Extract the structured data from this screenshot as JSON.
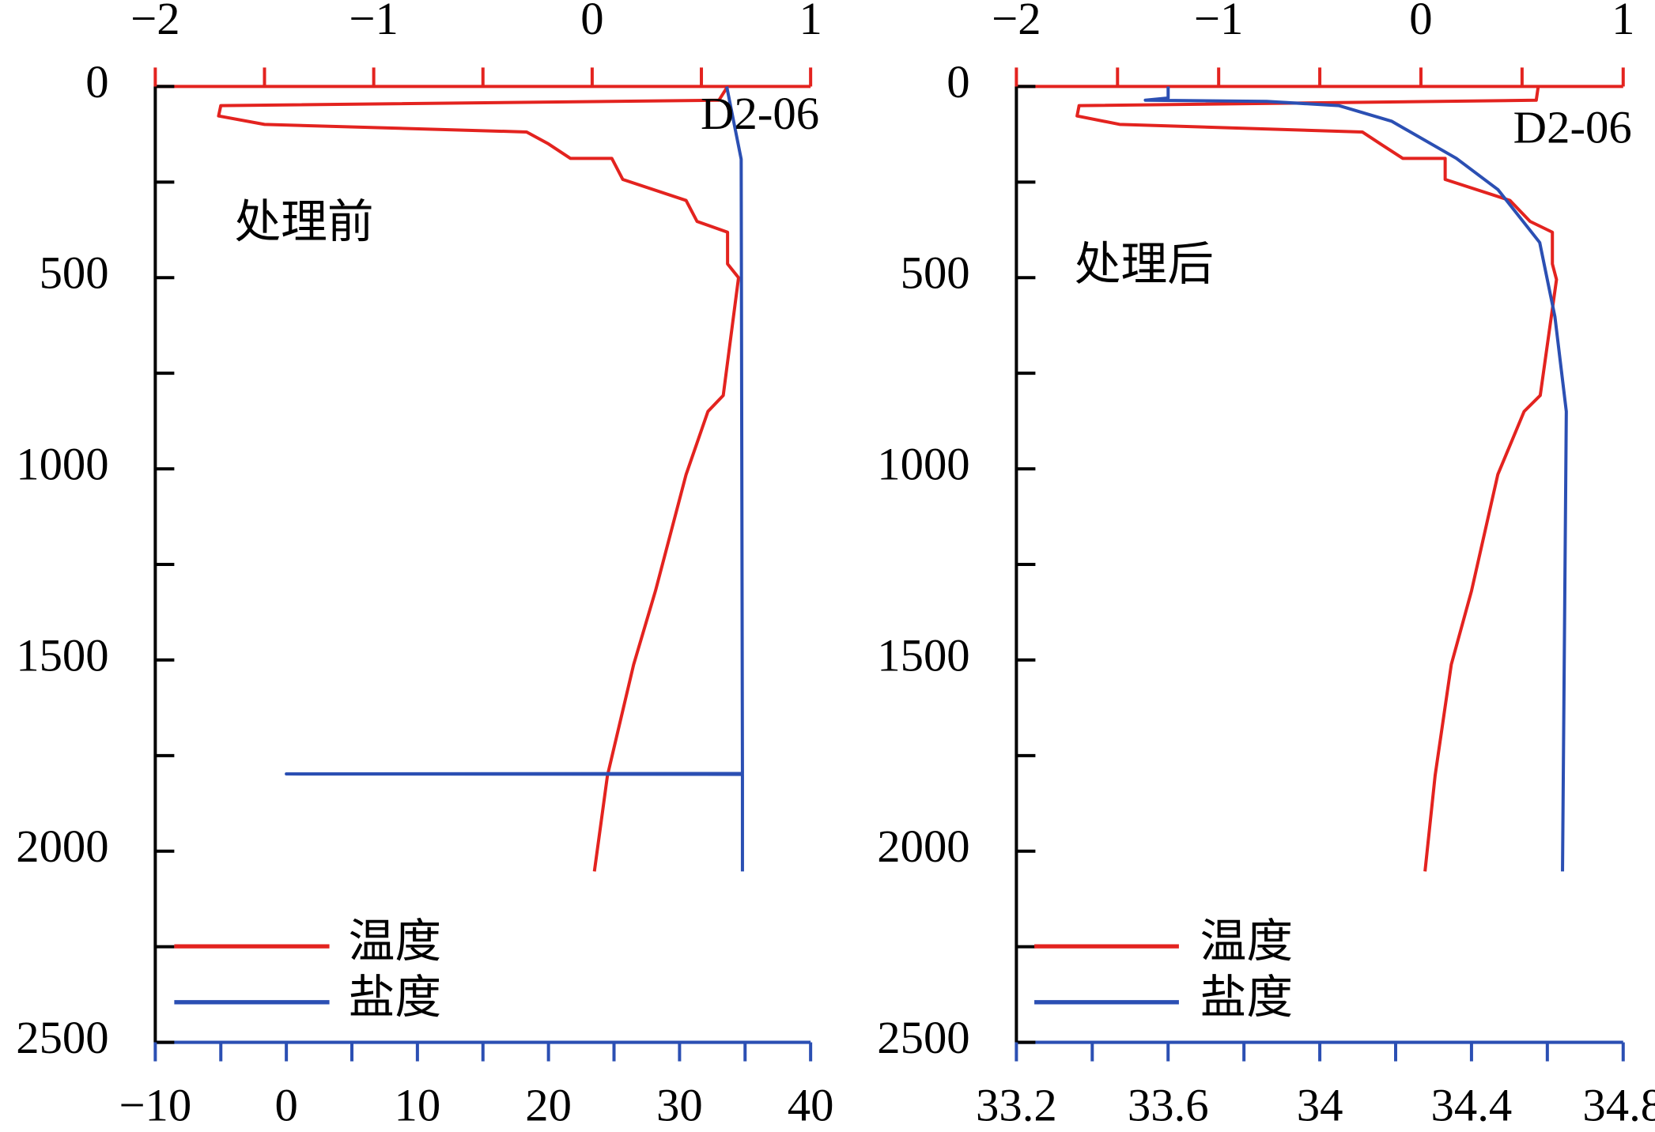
{
  "chart_data": [
    {
      "type": "line",
      "annotation": "处理前",
      "station": "D2-06",
      "ylim": [
        0,
        2500
      ],
      "y_inverted": true,
      "yticks": [
        0,
        500,
        1000,
        1500,
        2000,
        2500
      ],
      "yminor_ticks": [
        250,
        750,
        1250,
        1750,
        2250
      ],
      "xlim": [
        -10,
        40
      ],
      "xticks": [
        {
          "value": -10,
          "label": "−10"
        },
        0,
        10,
        20,
        30,
        40
      ],
      "xminor_ticks": [
        -5,
        5,
        15,
        25,
        35
      ],
      "x2lim": [
        -2,
        1
      ],
      "x2ticks": [
        {
          "value": -2,
          "label": "−2"
        },
        {
          "value": -1,
          "label": "−1"
        },
        0,
        1
      ],
      "x2minor_ticks": [
        -1.5,
        -0.5,
        0.5
      ],
      "legend": "lower left",
      "series": [
        {
          "name": "温度",
          "color": "#e3231f",
          "axis": "x2",
          "depth": [
            0,
            36,
            50,
            77,
            99,
            119,
            150,
            188,
            188,
            243,
            298,
            353,
            381,
            464,
            500,
            808,
            850,
            1015,
            1319,
            1512,
            1802,
            2053
          ],
          "values": [
            0.62,
            0.58,
            -1.7,
            -1.71,
            -1.5,
            -0.3,
            -0.2,
            -0.1,
            0.09,
            0.14,
            0.43,
            0.48,
            0.62,
            0.62,
            0.67,
            0.6,
            0.53,
            0.43,
            0.29,
            0.19,
            0.07,
            0.01
          ]
        },
        {
          "name": "盐度",
          "color": "#2b4fb3",
          "axis": "x",
          "depth": [
            0,
            190,
            1797,
            1798,
            1799,
            2053
          ],
          "values": [
            33.6,
            34.7,
            34.8,
            0,
            34.8,
            34.8
          ]
        }
      ]
    },
    {
      "type": "line",
      "annotation": "处理后",
      "station": "D2-06",
      "ylim": [
        0,
        2500
      ],
      "y_inverted": true,
      "yticks": [
        0,
        500,
        1000,
        1500,
        2000,
        2500
      ],
      "yminor_ticks": [
        250,
        750,
        1250,
        1750,
        2250
      ],
      "xlim": [
        33.2,
        34.8
      ],
      "xticks": [
        33.2,
        33.6,
        34,
        34.4,
        34.8
      ],
      "xminor_ticks": [
        33.4,
        33.8,
        34.2,
        34.6
      ],
      "x2lim": [
        -2,
        1
      ],
      "x2ticks": [
        {
          "value": -2,
          "label": "−2"
        },
        {
          "value": -1,
          "label": "−1"
        },
        0,
        1
      ],
      "x2minor_ticks": [
        -1.5,
        -0.5,
        0.5
      ],
      "legend": "lower left",
      "series": [
        {
          "name": "温度",
          "color": "#e3231f",
          "axis": "x2",
          "depth": [
            0,
            36,
            50,
            77,
            99,
            119,
            150,
            188,
            188,
            243,
            298,
            353,
            381,
            464,
            505,
            808,
            850,
            1015,
            1319,
            1512,
            1802,
            2053
          ],
          "values": [
            0.58,
            0.57,
            -1.69,
            -1.7,
            -1.49,
            -0.29,
            -0.2,
            -0.09,
            0.12,
            0.12,
            0.44,
            0.54,
            0.65,
            0.65,
            0.67,
            0.59,
            0.51,
            0.38,
            0.25,
            0.15,
            0.07,
            0.02
          ]
        },
        {
          "name": "盐度",
          "color": "#2b4fb3",
          "axis": "x",
          "depth": [
            0,
            30,
            36,
            39,
            50,
            91,
            188,
            270,
            408,
            602,
            850,
            2053
          ],
          "values": [
            33.6,
            33.6,
            33.54,
            33.86,
            34.05,
            34.19,
            34.36,
            34.47,
            34.58,
            34.62,
            34.65,
            34.64
          ]
        }
      ]
    }
  ]
}
